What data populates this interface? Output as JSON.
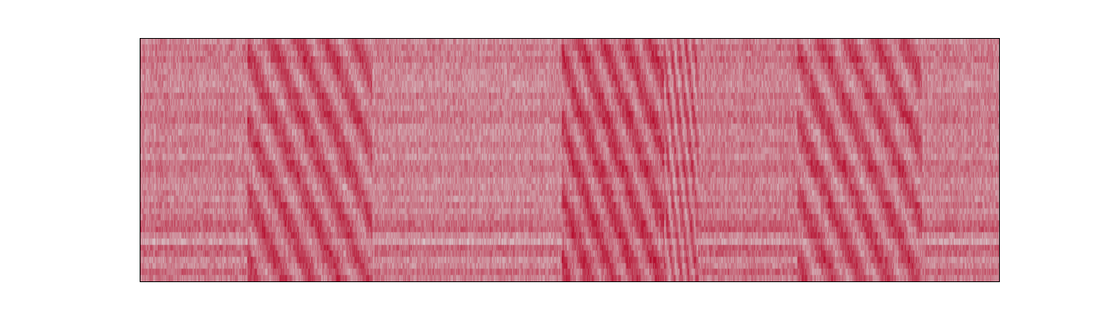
{
  "chart_data": {
    "type": "heatmap",
    "title": "",
    "xlabel": "",
    "ylabel": "",
    "colormap": "coolwarm",
    "axes_visible": false,
    "grid": false,
    "n_rows": 40,
    "n_cols": 1084,
    "value_range": [
      0,
      1
    ],
    "background_level": 0.74,
    "colormap_stops": [
      "#3b4cc0",
      "#dddddd",
      "#b40426"
    ],
    "active_segments": [
      {
        "x": [
          0.125,
          0.27
        ],
        "mean": 0.78
      },
      {
        "x": [
          0.49,
          0.61
        ],
        "mean": 0.8
      },
      {
        "x": [
          0.61,
          0.65
        ],
        "mean": 0.76
      },
      {
        "x": [
          0.765,
          0.91
        ],
        "mean": 0.78
      }
    ],
    "quiet_segments": [
      {
        "x": [
          0.0,
          0.125
        ],
        "mean": 0.72
      },
      {
        "x": [
          0.27,
          0.49
        ],
        "mean": 0.71
      },
      {
        "x": [
          0.65,
          0.765
        ],
        "mean": 0.73
      },
      {
        "x": [
          0.91,
          1.0
        ],
        "mean": 0.72
      }
    ],
    "min_cell": {
      "row": 0,
      "col": 0,
      "value": 0.02
    }
  }
}
